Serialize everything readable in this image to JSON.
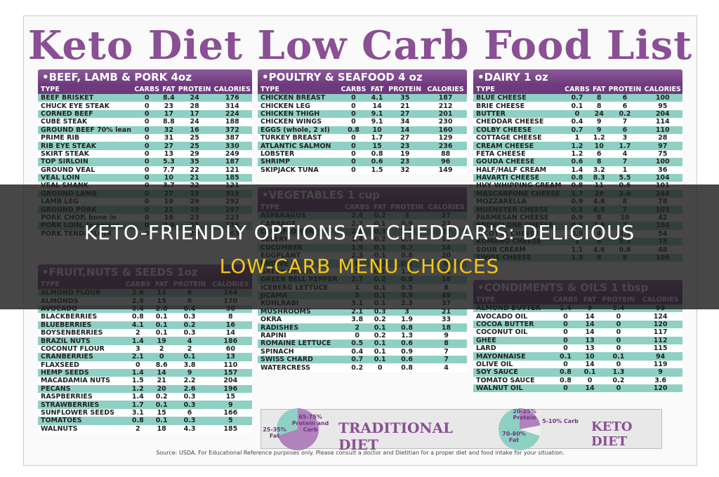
{
  "title": "Keto Diet Low Carb Food List",
  "headers": [
    "TYPE",
    "CARBS",
    "FAT",
    "PROTEIN",
    "CALORIES"
  ],
  "sections": {
    "beef": {
      "heading": "•BEEF, LAMB & PORK 4oz",
      "rows": [
        [
          "BEEF BRISKET",
          "0",
          "8.4",
          "24",
          "176"
        ],
        [
          "CHUCK EYE STEAK",
          "0",
          "23",
          "28",
          "314"
        ],
        [
          "CORNED BEEF",
          "0",
          "17",
          "17",
          "224"
        ],
        [
          "CUBE STEAK",
          "0",
          "8.8",
          "24",
          "188"
        ],
        [
          "GROUND BEEF 70% lean",
          "0",
          "32",
          "16",
          "372"
        ],
        [
          "PRIME RIB",
          "0",
          "31",
          "25",
          "387"
        ],
        [
          "RIB EYE STEAK",
          "0",
          "27",
          "25",
          "330"
        ],
        [
          "SKIRT STEAK",
          "0",
          "13",
          "29",
          "249"
        ],
        [
          "TOP SIRLOIN",
          "0",
          "5.3",
          "35",
          "187"
        ],
        [
          "GROUND VEAL",
          "0",
          "7.7",
          "22",
          "121"
        ],
        [
          "VEAL LOIN",
          "0",
          "10",
          "21",
          "185"
        ],
        [
          "VEAL SHANK",
          "0",
          "3.7",
          "22",
          "121"
        ],
        [
          "GROUND LAMB",
          "0",
          "27",
          "19",
          "319"
        ],
        [
          "LAMB LEG",
          "0",
          "19",
          "29",
          "292"
        ],
        [
          "GROUND PORK",
          "0",
          "21",
          "19",
          "297"
        ],
        [
          "PORK CHOP, bone in",
          "0",
          "16",
          "23",
          "223"
        ],
        [
          "PORK LOIN, boneless",
          "0",
          "7.9",
          "25",
          "176"
        ],
        [
          "PORK TENDERLOIN",
          "0",
          "4",
          "29",
          "163"
        ]
      ]
    },
    "fruit": {
      "heading": "•FRUIT,NUTS & SEEDS 1oz",
      "rows": [
        [
          "ALMOND FLOUR",
          "2.6",
          "14",
          "6",
          "164"
        ],
        [
          "ALMONDS",
          "2.9",
          "15",
          "6",
          "170"
        ],
        [
          "AVOCADO",
          "0.4",
          "2.8",
          "0.4",
          "30"
        ],
        [
          "BLACKBERRIES",
          "0.8",
          "0.1",
          "0.3",
          "8"
        ],
        [
          "BLUEBERRIES",
          "4.1",
          "0.1",
          "0.2",
          "16"
        ],
        [
          "BOYSENBERRIES",
          "2",
          "0.1",
          "0.3",
          "14"
        ],
        [
          "BRAZIL NUTS",
          "1.4",
          "19",
          "4",
          "186"
        ],
        [
          "COCONUT FLOUR",
          "3",
          "2",
          "2",
          "60"
        ],
        [
          "CRANBERRIES",
          "2.1",
          "0",
          "0.1",
          "13"
        ],
        [
          "FLAXSEED",
          "0",
          "8.6",
          "3.8",
          "110"
        ],
        [
          "HEMP SEEDS",
          "1.4",
          "14",
          "9",
          "157"
        ],
        [
          "MACADAMIA NUTS",
          "1.5",
          "21",
          "2.2",
          "204"
        ],
        [
          "PECANS",
          "1.2",
          "20",
          "2.6",
          "196"
        ],
        [
          "RASPBERRIES",
          "1.4",
          "0.2",
          "0.3",
          "15"
        ],
        [
          "STRAWBERRIES",
          "1.7",
          "0.1",
          "0.3",
          "9"
        ],
        [
          "SUNFLOWER SEEDS",
          "3.1",
          "15",
          "6",
          "166"
        ],
        [
          "TOMATOES",
          "0.8",
          "0.1",
          "0.3",
          "5"
        ],
        [
          "WALNUTS",
          "2",
          "18",
          "4.3",
          "185"
        ]
      ]
    },
    "poultry": {
      "heading": "•POULTRY & SEAFOOD 4 oz",
      "rows": [
        [
          "CHICKEN BREAST",
          "0",
          "4.1",
          "35",
          "187"
        ],
        [
          "CHICKEN LEG",
          "0",
          "14",
          "21",
          "212"
        ],
        [
          "CHICKEN THIGH",
          "0",
          "9.1",
          "27",
          "201"
        ],
        [
          "CHICKEN WINGS",
          "0",
          "9.1",
          "34",
          "230"
        ],
        [
          "EGGS (whole, 2 xl)",
          "0.8",
          "10",
          "14",
          "160"
        ],
        [
          "TURKEY BREAST",
          "0",
          "1.7",
          "27",
          "129"
        ],
        [
          "ATLANTIC SALMON",
          "0",
          "15",
          "23",
          "236"
        ],
        [
          "LOBSTER",
          "0",
          "0.8",
          "19",
          "88"
        ],
        [
          "SHRIMP",
          "0",
          "0.6",
          "23",
          "96"
        ],
        [
          "SKIPJACK TUNA",
          "0",
          "1.5",
          "32",
          "149"
        ]
      ]
    },
    "veg": {
      "heading": "•VEGETABLES 1 cup",
      "rows": [
        [
          "ASPARAGUS",
          "2.4",
          "0.2",
          "3",
          "27"
        ],
        [
          "CABBAGE",
          "2.2",
          "0.1",
          "0.9",
          "22"
        ],
        [
          "CAULIFLOWER",
          "2.9",
          "0.3",
          "2.1",
          "27"
        ],
        [
          "CELERY",
          "1.4",
          "0.2",
          "0.7",
          "16"
        ],
        [
          "CUCUMBER",
          "1.9",
          "0.1",
          "0.7",
          "14"
        ],
        [
          "EGGPLANT",
          "2.3",
          "0.1",
          "0.8",
          "20"
        ],
        [
          "ENDIVE",
          "0",
          "0.2",
          "0.6",
          "8"
        ],
        [
          "GREEN BEANS",
          "5",
          "0.1",
          "1.8",
          "31"
        ],
        [
          "GREEN BELL PEPPER",
          "2.7",
          "0.2",
          "0.8",
          "18"
        ],
        [
          "ICEBERG LETTUCE",
          "1",
          "0.1",
          "0.5",
          "8"
        ],
        [
          "JICAMA",
          "5",
          "0.1",
          "0.9",
          "49"
        ],
        [
          "KOHLRABI",
          "3.1",
          "0.1",
          "2.3",
          "37"
        ],
        [
          "MUSHROOMS",
          "2.1",
          "0.3",
          "3",
          "21"
        ],
        [
          "OKRA",
          "3.8",
          "0.2",
          "1.9",
          "33"
        ],
        [
          "RADISHES",
          "2",
          "0.1",
          "0.8",
          "18"
        ],
        [
          "RAPINI",
          "0",
          "0.2",
          "1.3",
          "9"
        ],
        [
          "ROMAINE LETTUCE",
          "0.5",
          "0.1",
          "0.6",
          "8"
        ],
        [
          "SPINACH",
          "0.4",
          "0.1",
          "0.9",
          "7"
        ],
        [
          "SWISS CHARD",
          "0.7",
          "0.1",
          "0.6",
          "7"
        ],
        [
          "WATERCRESS",
          "0.2",
          "0",
          "0.8",
          "4"
        ]
      ]
    },
    "dairy": {
      "heading": "•DAIRY 1 oz",
      "rows": [
        [
          "BLUE CHEESE",
          "0.7",
          "8",
          "6",
          "100"
        ],
        [
          "BRIE CHEESE",
          "0.1",
          "8",
          "6",
          "95"
        ],
        [
          "BUTTER",
          "0",
          "24",
          "0.2",
          "204"
        ],
        [
          "CHEDDAR CHEESE",
          "0.4",
          "9",
          "7",
          "114"
        ],
        [
          "COLBY CHEESE",
          "0.7",
          "9",
          "6",
          "110"
        ],
        [
          "COTTAGE CHEESE",
          "1",
          "1.2",
          "3",
          "28"
        ],
        [
          "CREAM CHEESE",
          "1.2",
          "10",
          "1.7",
          "97"
        ],
        [
          "FETA CHEESE",
          "1.2",
          "6",
          "4",
          "75"
        ],
        [
          "GOUDA CHEESE",
          "0.6",
          "8",
          "7",
          "100"
        ],
        [
          "HALF/HALF CREAM",
          "1.4",
          "3.2",
          "1",
          "36"
        ],
        [
          "HAVARTI CHEESE",
          "0.8",
          "8.3",
          "5.5",
          "104"
        ],
        [
          "HVY WHIPPING CREAM",
          "0.8",
          "11",
          "0.6",
          "101"
        ],
        [
          "MASCARPONE CHEESE",
          "1.7",
          "26",
          "2.6",
          "244"
        ],
        [
          "MOZZARELLA",
          "0.9",
          "4.8",
          "8",
          "78"
        ],
        [
          "MUENSTER CHEESE",
          "0.3",
          "8.5",
          "7",
          "103"
        ],
        [
          "PARMESAN CHEESE",
          "0.9",
          "8",
          "10",
          "42"
        ],
        [
          "PROVOLONE CHEESE",
          "0.6",
          "7.5",
          "7",
          "104"
        ],
        [
          "RICOTTA CHEESE",
          "0.9",
          "4",
          "3.5",
          "54"
        ],
        [
          "ROMANO CHEESE",
          "1",
          "6",
          "5.3",
          "75"
        ],
        [
          "SOUR CREAM",
          "1.1",
          "4.6",
          "0.6",
          "48"
        ],
        [
          "SWISS CHEESE",
          "1.5",
          "8",
          "8",
          "106"
        ]
      ]
    },
    "condiments": {
      "heading": "•CONDIMENTS & OILS 1 tbsp",
      "rows": [
        [
          "ALMOND BUTTER",
          "1.4",
          "9",
          "3.4",
          "98"
        ],
        [
          "AVOCADO OIL",
          "0",
          "14",
          "0",
          "124"
        ],
        [
          "COCOA BUTTER",
          "0",
          "14",
          "0",
          "120"
        ],
        [
          "COCONUT OIL",
          "0",
          "14",
          "0",
          "117"
        ],
        [
          "GHEE",
          "0",
          "13",
          "0",
          "112"
        ],
        [
          "LARD",
          "0",
          "13",
          "0",
          "115"
        ],
        [
          "MAYONNAISE",
          "0.1",
          "10",
          "0.1",
          "94"
        ],
        [
          "OLIVE OIL",
          "0",
          "14",
          "0",
          "119"
        ],
        [
          "SOY SAUCE",
          "0.8",
          "0.1",
          "1.3",
          "9"
        ],
        [
          "TOMATO SAUCE",
          "0.8",
          "0",
          "0.2",
          "3.6"
        ],
        [
          "WALNUT OIL",
          "0",
          "14",
          "0",
          "120"
        ]
      ]
    }
  },
  "traditional": {
    "label": "TRADITIONAL DIET",
    "protein_carb": "65-75% Protein and Carb",
    "fat": "25-35% Fat"
  },
  "keto": {
    "label": "KETO DIET",
    "protein": "20-25% Protein",
    "carb": "5-10% Carb",
    "fat": "70-80% Fat"
  },
  "source_note": "Source: USDA.  For Educational Reference purposes only.  Please consult a doctor and Dietitian for a proper diet and food intake for your situation.",
  "overlay": {
    "line1": "KETO-FRIENDLY OPTIONS AT CHEDDAR'S: DELICIOUS",
    "line2": "LOW-CARB MENU CHOICES"
  },
  "colors": {
    "accent": "#8a4f95",
    "teal": "#8fd0c4",
    "overlay_line1": "#ffffff",
    "overlay_line2": "#f5c518"
  }
}
